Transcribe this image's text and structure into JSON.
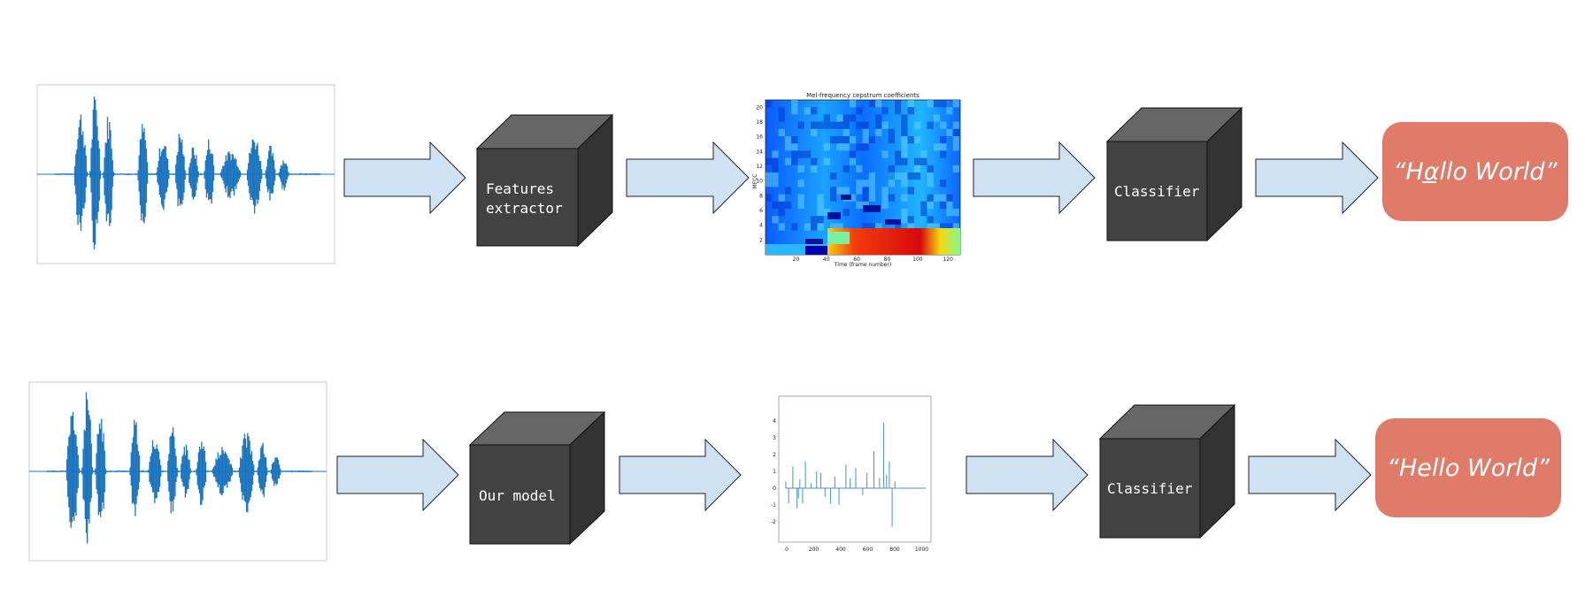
{
  "colors": {
    "arrow_fill": "#cfe2f3",
    "cube_front": "#424242",
    "cube_top": "#666666",
    "cube_side": "#333333",
    "output_box": "#e07b69",
    "waveform": "#1b74c0",
    "spectrogram_background": "#0a5bff"
  },
  "top_row": {
    "cube1_label": "Features extractor",
    "mfcc_title": "Mel-frequency cepstrum coefficients",
    "mfcc_xlabel": "Time (frame number)",
    "mfcc_ylabel": "MFCC",
    "mfcc_xticks": [
      "20",
      "40",
      "60",
      "80",
      "100",
      "120"
    ],
    "mfcc_yticks": [
      "2",
      "4",
      "6",
      "8",
      "10",
      "12",
      "14",
      "16",
      "18",
      "20"
    ],
    "cube2_label": "Classifier",
    "output": "“Hαllo World”"
  },
  "bottom_row": {
    "cube1_label": "Our model",
    "plot_xticks": [
      "0",
      "200",
      "400",
      "600",
      "800",
      "1000"
    ],
    "plot_yticks": [
      "4",
      "3",
      "2",
      "1",
      "0",
      "-1",
      "-2"
    ],
    "cube2_label": "Classifier",
    "output": "“Hello World”"
  }
}
